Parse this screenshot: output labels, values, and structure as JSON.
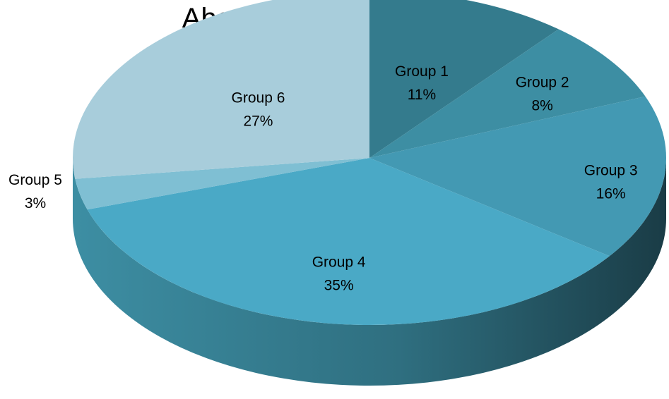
{
  "chart_data": {
    "type": "pie",
    "style": "3d",
    "title": "Above average students",
    "categories": [
      "Group 1",
      "Group 2",
      "Group 3",
      "Group 4",
      "Group 5",
      "Group 6"
    ],
    "values": [
      11,
      8,
      16,
      35,
      3,
      27
    ],
    "value_labels": [
      "11%",
      "8%",
      "16%",
      "35%",
      "3%",
      "27%"
    ],
    "colors": [
      "#347b8d",
      "#3d8ea3",
      "#4399b3",
      "#4aa9c6",
      "#7fbfd3",
      "#a8cddb"
    ],
    "legend": "none"
  }
}
